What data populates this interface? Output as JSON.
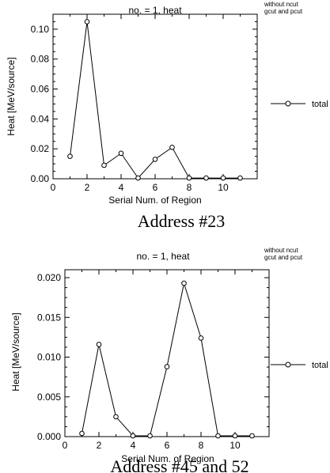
{
  "figure": {
    "caption1": "Address #23",
    "caption2": "Address #45 and 52",
    "note_line1": "without ncut",
    "note_line2": "gcut and pcut"
  },
  "chart_data": [
    {
      "type": "line",
      "title": "no. = 1,    heat",
      "xlabel": "Serial Num. of Region",
      "ylabel": "Heat [MeV/source]",
      "xlim": [
        0,
        12
      ],
      "ylim": [
        0,
        0.11
      ],
      "xticks": [
        "0",
        "2",
        "4",
        "6",
        "8",
        "10"
      ],
      "yticks": [
        "0.00",
        "0.02",
        "0.04",
        "0.06",
        "0.08",
        "0.10"
      ],
      "legend_placement": "right",
      "grid": false,
      "series": [
        {
          "name": "total",
          "x": [
            1,
            2,
            3,
            4,
            5,
            6,
            7,
            8,
            9,
            10,
            11
          ],
          "values": [
            0.015,
            0.105,
            0.009,
            0.017,
            0.0005,
            0.013,
            0.021,
            0.0005,
            0.0005,
            0.0005,
            0.0005
          ]
        }
      ]
    },
    {
      "type": "line",
      "title": "no. = 1,    heat",
      "xlabel": "Serial Num. of Region",
      "ylabel": "Heat [MeV/source]",
      "xlim": [
        0,
        12
      ],
      "ylim": [
        0,
        0.021
      ],
      "xticks": [
        "0",
        "2",
        "4",
        "6",
        "8",
        "10"
      ],
      "yticks": [
        "0.000",
        "0.005",
        "0.010",
        "0.015",
        "0.020"
      ],
      "legend_placement": "right",
      "grid": false,
      "series": [
        {
          "name": "total",
          "x": [
            1,
            2,
            3,
            4,
            5,
            6,
            7,
            8,
            9,
            10,
            11
          ],
          "values": [
            0.0004,
            0.0116,
            0.0025,
            0.0001,
            0.0001,
            0.0088,
            0.0193,
            0.0124,
            0.0001,
            0.0001,
            0.0001
          ]
        }
      ]
    }
  ]
}
